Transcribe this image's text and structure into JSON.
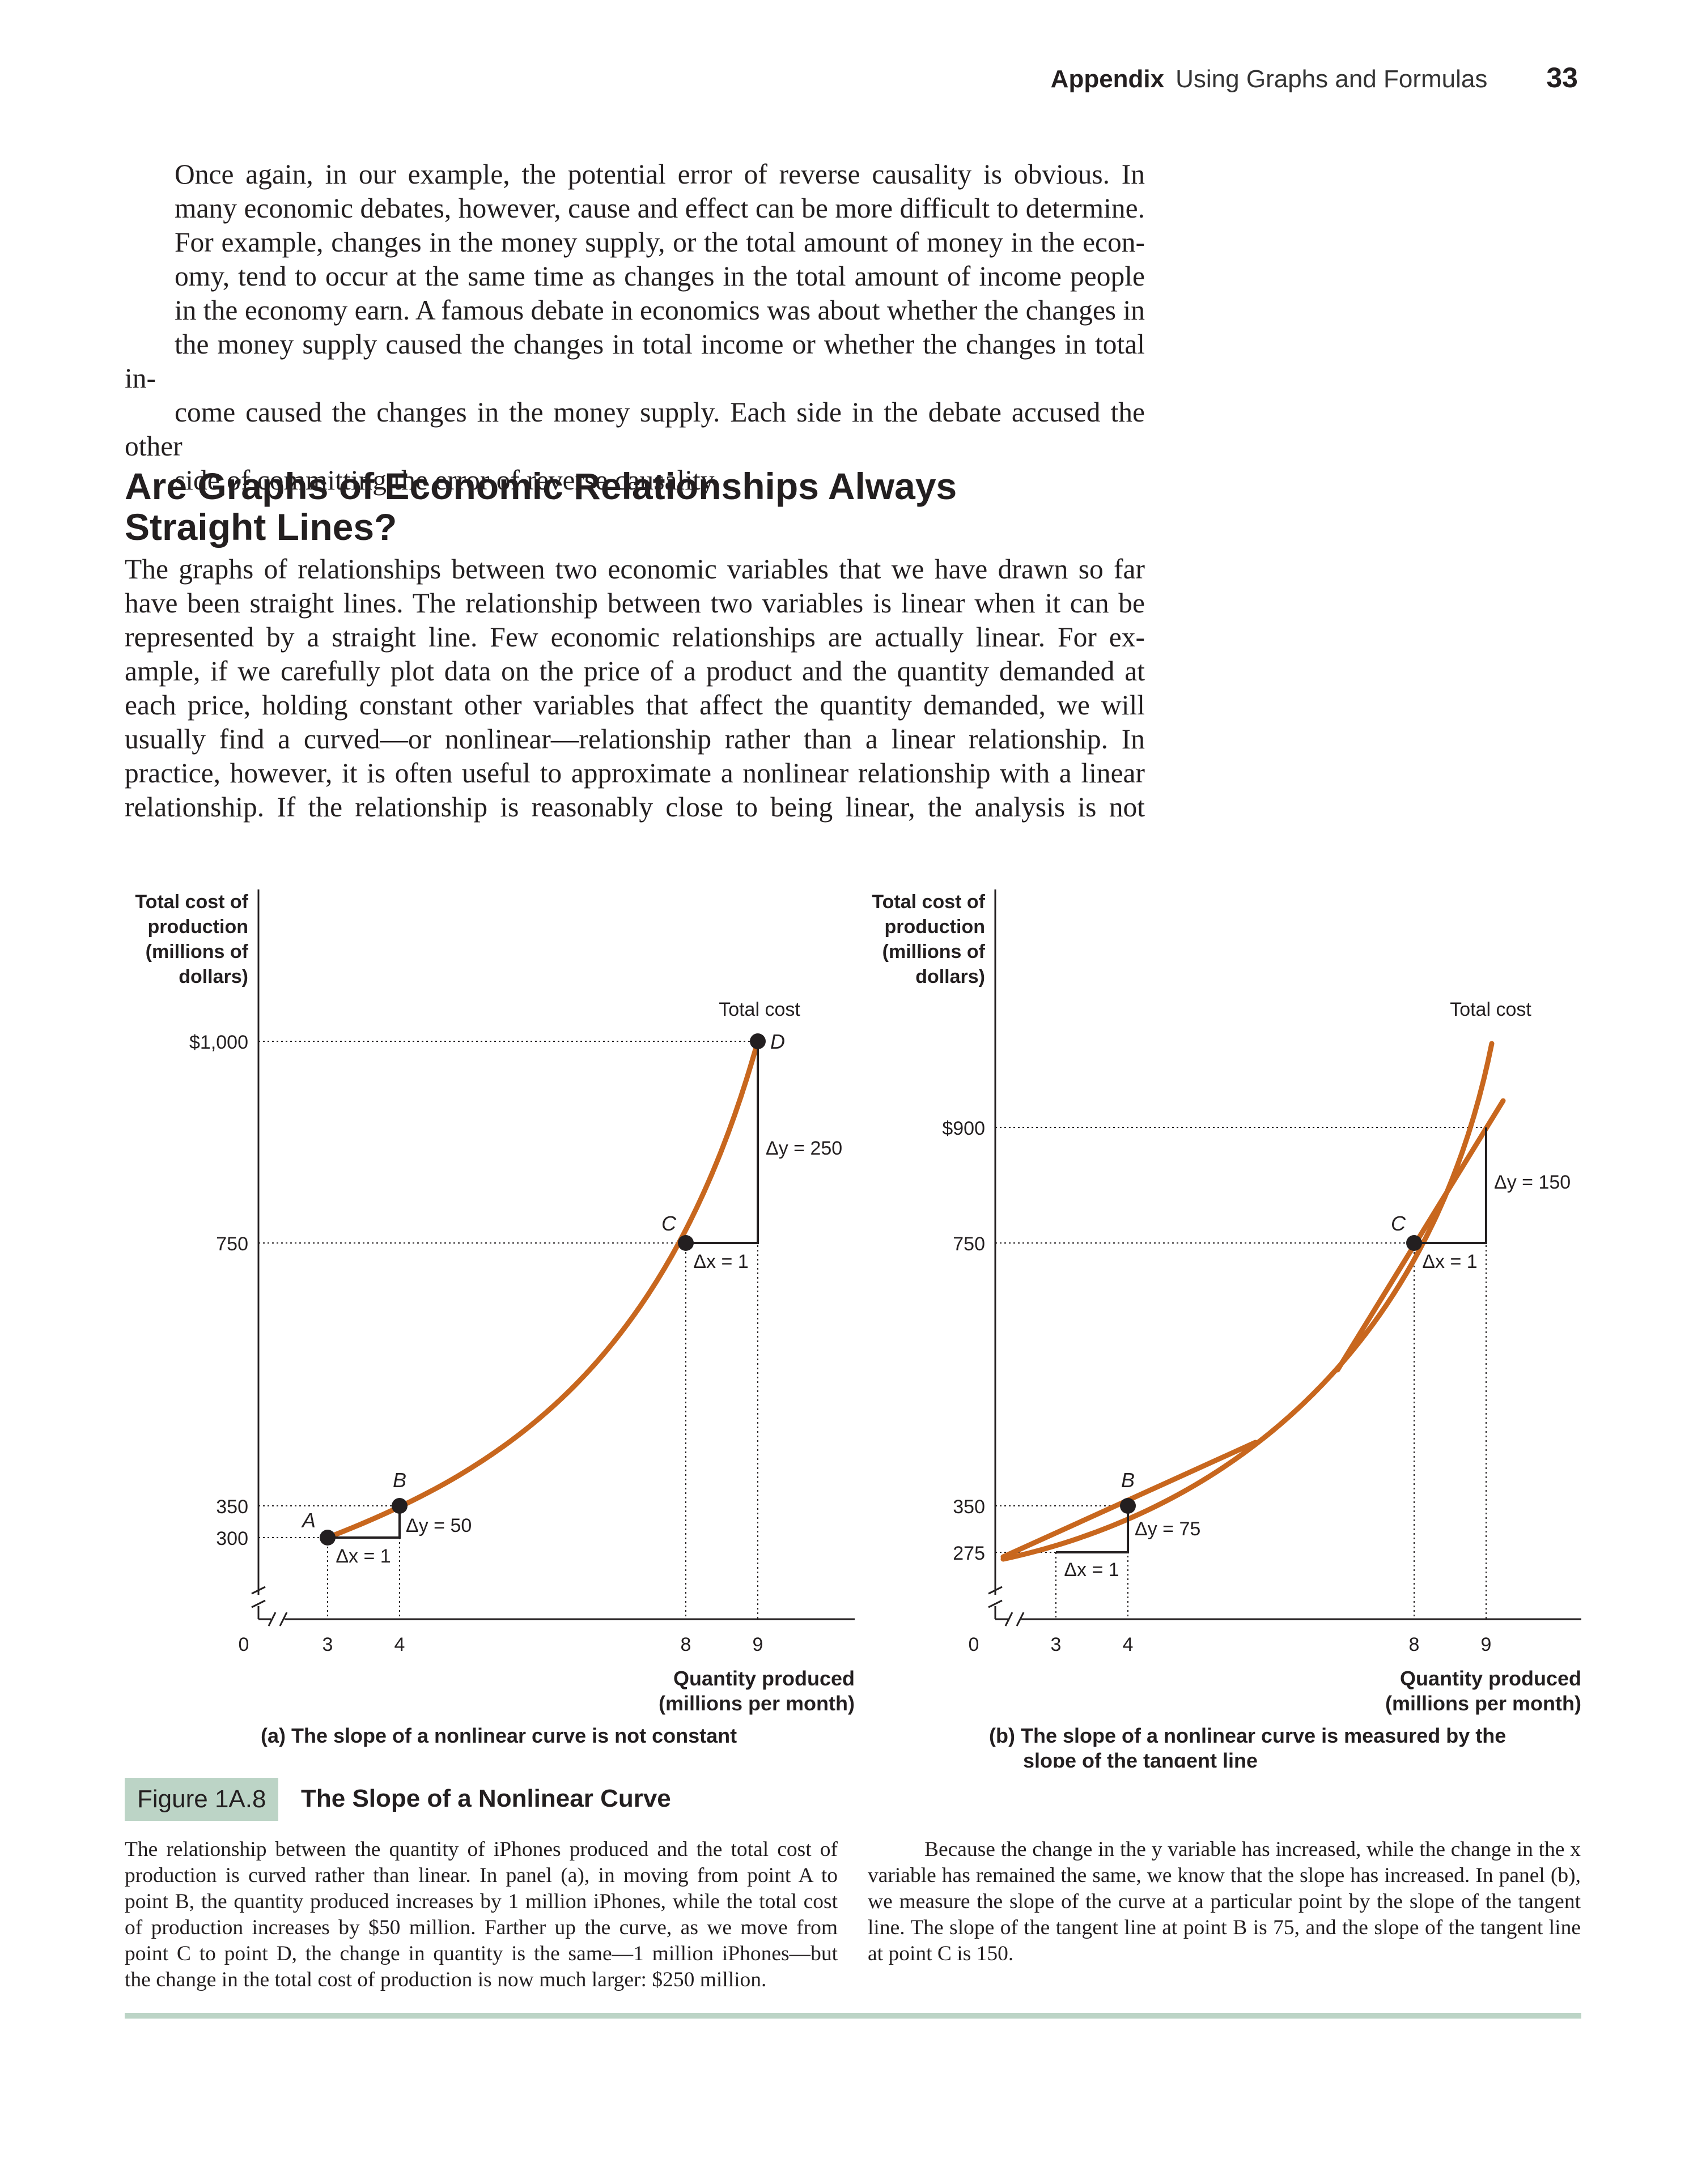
{
  "running_head": {
    "section": "Appendix",
    "title": "Using Graphs and Formulas",
    "page": "33"
  },
  "para1": [
    "Once again, in our example, the potential error of reverse causality is obvious. In",
    "many economic debates, however, cause and effect can be more difficult to determine.",
    "For example, changes in the money supply, or the total amount of money in the econ-",
    "omy, tend to occur at the same time as changes in the total amount of income people",
    "in the economy earn. A famous debate in economics was about whether the changes in",
    "the money supply caused the changes in total income or whether the changes in total in-",
    "come caused the changes in the money supply. Each side in the debate accused the other",
    "side of committing the error of reverse causality."
  ],
  "heading": [
    "Are Graphs of Economic Relationships Always",
    "Straight Lines?"
  ],
  "para2": [
    "The graphs of relationships between two economic variables that we have drawn so far",
    "have been straight lines. The relationship between two variables is linear when it can be",
    "represented by a straight line. Few economic relationships are actually linear. For ex-",
    "ample, if we carefully plot data on the price of a product and the quantity demanded at",
    "each price, holding constant other variables that affect the quantity demanded, we will",
    "usually find a curved—or nonlinear—relationship rather than a linear relationship. In",
    "practice, however, it is often useful to approximate a nonlinear relationship with a linear",
    "relationship. If the relationship is reasonably close to being linear, the analysis is not"
  ],
  "colors": {
    "curve": "#c8671e",
    "accent_box": "#bcd4c6",
    "text": "#231f20"
  },
  "chart_data": [
    {
      "type": "line",
      "panel": "a",
      "title": "(a) The slope of a nonlinear curve is not constant",
      "ylabel": [
        "Total cost of",
        "production",
        "(millions of",
        "dollars)"
      ],
      "xlabel": [
        "Quantity produced",
        "(millions per month)"
      ],
      "series_label": "Total cost",
      "x_ticks": [
        "0",
        "3",
        "4",
        "8",
        "9"
      ],
      "y_ticks": [
        "$1,000",
        "750",
        "350",
        "300"
      ],
      "points": [
        {
          "label": "A",
          "x": 3,
          "y": 300
        },
        {
          "label": "B",
          "x": 4,
          "y": 350
        },
        {
          "label": "C",
          "x": 8,
          "y": 750
        },
        {
          "label": "D",
          "x": 9,
          "y": 1000
        }
      ],
      "annotations": [
        "Δx = 1",
        "Δy = 50",
        "Δx = 1",
        "Δy = 250"
      ]
    },
    {
      "type": "line",
      "panel": "b",
      "title": [
        "(b) The slope of a nonlinear curve is measured by the",
        "slope of the tangent line"
      ],
      "ylabel": [
        "Total cost of",
        "production",
        "(millions of",
        "dollars)"
      ],
      "xlabel": [
        "Quantity produced",
        "(millions per month)"
      ],
      "series_label": "Total cost",
      "x_ticks": [
        "0",
        "3",
        "4",
        "8",
        "9"
      ],
      "y_ticks": [
        "$900",
        "750",
        "350",
        "275"
      ],
      "points": [
        {
          "label": "B",
          "x": 4,
          "y": 350
        },
        {
          "label": "C",
          "x": 8,
          "y": 750
        }
      ],
      "tangent_slopes": {
        "B": 75,
        "C": 150
      },
      "annotations": [
        "Δx = 1",
        "Δy = 75",
        "Δx = 1",
        "Δy = 150"
      ]
    }
  ],
  "figure": {
    "label": "Figure 1A.8",
    "title": "The Slope of a Nonlinear Curve"
  },
  "caption_left": [
    "The relationship between the quantity of iPhones produced and the total cost of",
    "production is curved rather than linear. In panel (a), in moving from point A to",
    "point B, the quantity produced increases by 1 million iPhones, while the total cost",
    "of production increases by $50 million. Farther up the curve, as we move from",
    "point C to point D, the change in quantity is the same—1 million iPhones—but",
    "the change in the total cost of production is now much larger: $250 million."
  ],
  "caption_right": [
    "Because the change in the y variable has increased, while the change in the x",
    "variable has remained the same, we know that the slope has increased. In panel (b),",
    "we measure the slope of the curve at a particular point by the slope of the tangent",
    "line. The slope of the tangent line at point B is 75, and the slope of the tangent line",
    "at point C is 150."
  ]
}
